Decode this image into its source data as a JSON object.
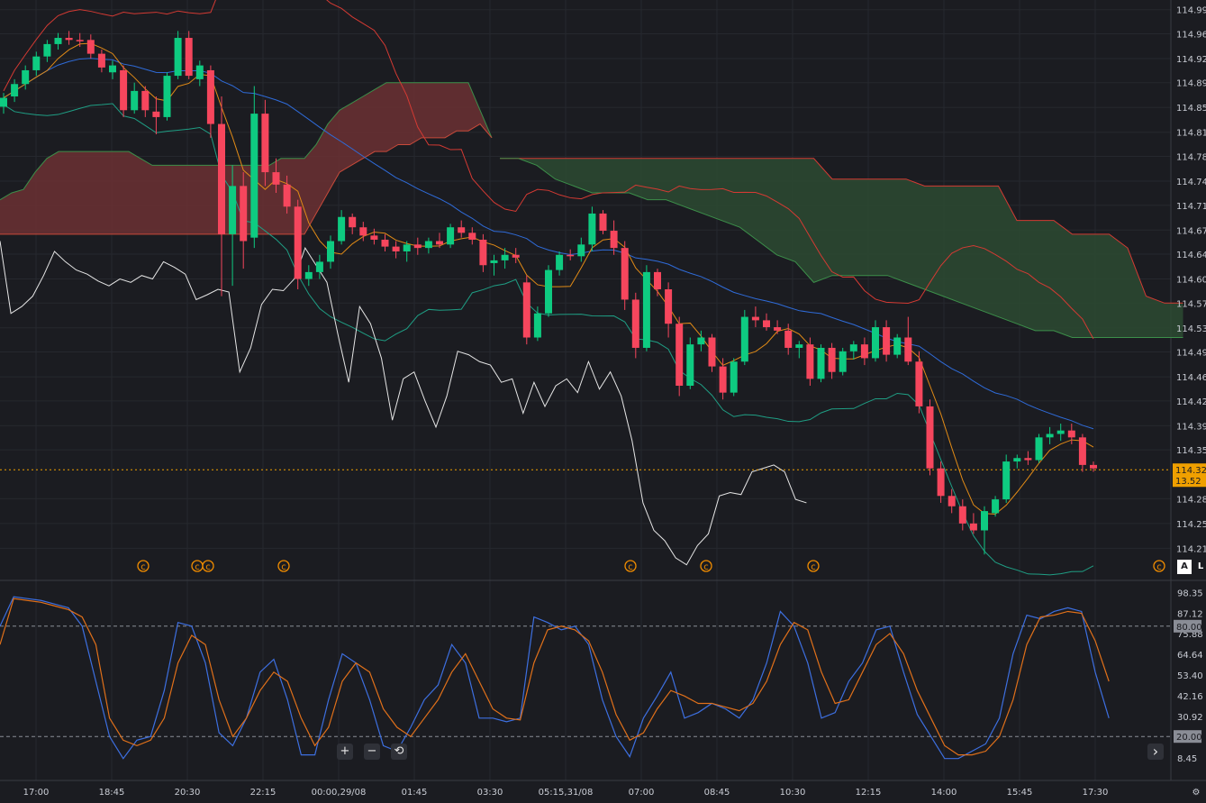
{
  "colors": {
    "background": "#1b1c21",
    "grid": "#26282e",
    "up": "#0ecb81",
    "down": "#f6465d",
    "price_line": "#f0a000",
    "signal_line": "#e06c00",
    "kline_blue": "#2f6bd8",
    "bb_red": "#d43a33",
    "bb_teal": "#1f9e84",
    "tenkan": "#e08a16",
    "chikou": "#e6e6e6",
    "cloud_red": "#6b3032",
    "cloud_green": "#2c4a31",
    "stoch_k": "#3d6fe0",
    "stoch_d": "#e0701a",
    "axis_text": "#c9ccd4"
  },
  "price_axis": {
    "ticks": [
      "114.996",
      "114.961",
      "114.925",
      "114.890",
      "114.854",
      "114.818",
      "114.783",
      "114.747",
      "114.712",
      "114.676",
      "114.641",
      "114.605",
      "114.570",
      "114.534",
      "114.499",
      "114.463",
      "114.428",
      "114.392",
      "114.357",
      "114.286",
      "114.250",
      "114.214"
    ],
    "current_price": "114.328",
    "current_extra": "13.52"
  },
  "oscillator_axis": {
    "ticks": [
      "98.35",
      "87.12",
      "75.88",
      "64.64",
      "53.40",
      "42.16",
      "30.92",
      "8.45"
    ],
    "upper_band": "80.00",
    "lower_band": "20.00"
  },
  "time_axis": {
    "ticks": [
      "17:00",
      "18:45",
      "20:30",
      "22:15",
      "00:00,29/08",
      "01:45",
      "03:30",
      "05:15,31/08",
      "07:00",
      "08:45",
      "10:30",
      "12:15",
      "14:00",
      "15:45",
      "17:30"
    ]
  },
  "event_markers": {
    "symbol": "©"
  },
  "controls": {
    "zoom_in": "+",
    "zoom_out": "−",
    "reset": "⟲",
    "scroll_right": "›",
    "auto_scale": "A",
    "log_scale": "L",
    "settings": "⚙"
  },
  "chart_data": [
    {
      "type": "candlestick",
      "title": "",
      "ylim": [
        114.17,
        115.01
      ],
      "candles": [
        {
          "o": 114.855,
          "h": 114.875,
          "l": 114.845,
          "c": 114.868
        },
        {
          "o": 114.87,
          "h": 114.895,
          "l": 114.862,
          "c": 114.888
        },
        {
          "o": 114.888,
          "h": 114.915,
          "l": 114.88,
          "c": 114.908
        },
        {
          "o": 114.908,
          "h": 114.935,
          "l": 114.9,
          "c": 114.928
        },
        {
          "o": 114.928,
          "h": 114.952,
          "l": 114.92,
          "c": 114.946
        },
        {
          "o": 114.946,
          "h": 114.962,
          "l": 114.938,
          "c": 114.955
        },
        {
          "o": 114.955,
          "h": 114.965,
          "l": 114.945,
          "c": 114.952
        },
        {
          "o": 114.952,
          "h": 114.962,
          "l": 114.942,
          "c": 114.95
        },
        {
          "o": 114.952,
          "h": 114.96,
          "l": 114.925,
          "c": 114.932
        },
        {
          "o": 114.932,
          "h": 114.938,
          "l": 114.905,
          "c": 114.912
        },
        {
          "o": 114.905,
          "h": 114.922,
          "l": 114.895,
          "c": 114.915
        },
        {
          "o": 114.908,
          "h": 114.915,
          "l": 114.84,
          "c": 114.85
        },
        {
          "o": 114.85,
          "h": 114.89,
          "l": 114.845,
          "c": 114.878
        },
        {
          "o": 114.878,
          "h": 114.885,
          "l": 114.84,
          "c": 114.85
        },
        {
          "o": 114.848,
          "h": 114.87,
          "l": 114.815,
          "c": 114.84
        },
        {
          "o": 114.84,
          "h": 114.905,
          "l": 114.835,
          "c": 114.9
        },
        {
          "o": 114.9,
          "h": 114.965,
          "l": 114.895,
          "c": 114.955
        },
        {
          "o": 114.955,
          "h": 114.965,
          "l": 114.895,
          "c": 114.9
        },
        {
          "o": 114.895,
          "h": 114.922,
          "l": 114.885,
          "c": 114.915
        },
        {
          "o": 114.908,
          "h": 114.915,
          "l": 114.81,
          "c": 114.83
        },
        {
          "o": 114.83,
          "h": 114.87,
          "l": 114.58,
          "c": 114.67
        },
        {
          "o": 114.67,
          "h": 114.77,
          "l": 114.595,
          "c": 114.74
        },
        {
          "o": 114.74,
          "h": 114.76,
          "l": 114.62,
          "c": 114.66
        },
        {
          "o": 114.665,
          "h": 114.885,
          "l": 114.65,
          "c": 114.845
        },
        {
          "o": 114.845,
          "h": 114.865,
          "l": 114.74,
          "c": 114.76
        },
        {
          "o": 114.76,
          "h": 114.78,
          "l": 114.73,
          "c": 114.742
        },
        {
          "o": 114.742,
          "h": 114.755,
          "l": 114.7,
          "c": 114.71
        },
        {
          "o": 114.71,
          "h": 114.72,
          "l": 114.59,
          "c": 114.605
        },
        {
          "o": 114.605,
          "h": 114.625,
          "l": 114.595,
          "c": 114.615
        },
        {
          "o": 114.615,
          "h": 114.64,
          "l": 114.605,
          "c": 114.63
        },
        {
          "o": 114.63,
          "h": 114.668,
          "l": 114.62,
          "c": 114.66
        },
        {
          "o": 114.66,
          "h": 114.705,
          "l": 114.655,
          "c": 114.695
        },
        {
          "o": 114.695,
          "h": 114.7,
          "l": 114.67,
          "c": 114.68
        },
        {
          "o": 114.68,
          "h": 114.688,
          "l": 114.66,
          "c": 114.668
        },
        {
          "o": 114.668,
          "h": 114.678,
          "l": 114.655,
          "c": 114.662
        },
        {
          "o": 114.662,
          "h": 114.67,
          "l": 114.645,
          "c": 114.652
        },
        {
          "o": 114.652,
          "h": 114.66,
          "l": 114.635,
          "c": 114.645
        },
        {
          "o": 114.645,
          "h": 114.66,
          "l": 114.63,
          "c": 114.655
        },
        {
          "o": 114.655,
          "h": 114.665,
          "l": 114.64,
          "c": 114.65
        },
        {
          "o": 114.65,
          "h": 114.665,
          "l": 114.642,
          "c": 114.66
        },
        {
          "o": 114.66,
          "h": 114.672,
          "l": 114.65,
          "c": 114.655
        },
        {
          "o": 114.655,
          "h": 114.685,
          "l": 114.65,
          "c": 114.68
        },
        {
          "o": 114.68,
          "h": 114.69,
          "l": 114.665,
          "c": 114.672
        },
        {
          "o": 114.672,
          "h": 114.68,
          "l": 114.655,
          "c": 114.662
        },
        {
          "o": 114.662,
          "h": 114.67,
          "l": 114.615,
          "c": 114.625
        },
        {
          "o": 114.628,
          "h": 114.64,
          "l": 114.61,
          "c": 114.632
        },
        {
          "o": 114.632,
          "h": 114.65,
          "l": 114.62,
          "c": 114.64
        },
        {
          "o": 114.64,
          "h": 114.65,
          "l": 114.628,
          "c": 114.636
        },
        {
          "o": 114.6,
          "h": 114.61,
          "l": 114.51,
          "c": 114.52
        },
        {
          "o": 114.52,
          "h": 114.565,
          "l": 114.515,
          "c": 114.555
        },
        {
          "o": 114.555,
          "h": 114.625,
          "l": 114.55,
          "c": 114.618
        },
        {
          "o": 114.618,
          "h": 114.645,
          "l": 114.61,
          "c": 114.64
        },
        {
          "o": 114.64,
          "h": 114.648,
          "l": 114.632,
          "c": 114.638
        },
        {
          "o": 114.638,
          "h": 114.665,
          "l": 114.63,
          "c": 114.655
        },
        {
          "o": 114.655,
          "h": 114.71,
          "l": 114.645,
          "c": 114.7
        },
        {
          "o": 114.7,
          "h": 114.705,
          "l": 114.67,
          "c": 114.675
        },
        {
          "o": 114.675,
          "h": 114.69,
          "l": 114.64,
          "c": 114.65
        },
        {
          "o": 114.65,
          "h": 114.66,
          "l": 114.56,
          "c": 114.575
        },
        {
          "o": 114.575,
          "h": 114.585,
          "l": 114.49,
          "c": 114.505
        },
        {
          "o": 114.505,
          "h": 114.625,
          "l": 114.5,
          "c": 114.615
        },
        {
          "o": 114.615,
          "h": 114.62,
          "l": 114.58,
          "c": 114.59
        },
        {
          "o": 114.59,
          "h": 114.6,
          "l": 114.52,
          "c": 114.54
        },
        {
          "o": 114.54,
          "h": 114.55,
          "l": 114.435,
          "c": 114.45
        },
        {
          "o": 114.45,
          "h": 114.52,
          "l": 114.445,
          "c": 114.51
        },
        {
          "o": 114.51,
          "h": 114.53,
          "l": 114.5,
          "c": 114.52
        },
        {
          "o": 114.52,
          "h": 114.525,
          "l": 114.47,
          "c": 114.478
        },
        {
          "o": 114.478,
          "h": 114.49,
          "l": 114.43,
          "c": 114.44
        },
        {
          "o": 114.44,
          "h": 114.49,
          "l": 114.435,
          "c": 114.485
        },
        {
          "o": 114.485,
          "h": 114.56,
          "l": 114.48,
          "c": 114.55
        },
        {
          "o": 114.55,
          "h": 114.565,
          "l": 114.535,
          "c": 114.545
        },
        {
          "o": 114.545,
          "h": 114.555,
          "l": 114.53,
          "c": 114.535
        },
        {
          "o": 114.535,
          "h": 114.545,
          "l": 114.525,
          "c": 114.53
        },
        {
          "o": 114.53,
          "h": 114.54,
          "l": 114.495,
          "c": 114.505
        },
        {
          "o": 114.505,
          "h": 114.515,
          "l": 114.49,
          "c": 114.51
        },
        {
          "o": 114.51,
          "h": 114.52,
          "l": 114.45,
          "c": 114.46
        },
        {
          "o": 114.46,
          "h": 114.51,
          "l": 114.455,
          "c": 114.505
        },
        {
          "o": 114.505,
          "h": 114.512,
          "l": 114.46,
          "c": 114.47
        },
        {
          "o": 114.47,
          "h": 114.505,
          "l": 114.465,
          "c": 114.5
        },
        {
          "o": 114.5,
          "h": 114.515,
          "l": 114.488,
          "c": 114.51
        },
        {
          "o": 114.51,
          "h": 114.52,
          "l": 114.48,
          "c": 114.49
        },
        {
          "o": 114.49,
          "h": 114.545,
          "l": 114.485,
          "c": 114.535
        },
        {
          "o": 114.535,
          "h": 114.545,
          "l": 114.485,
          "c": 114.495
        },
        {
          "o": 114.495,
          "h": 114.525,
          "l": 114.49,
          "c": 114.52
        },
        {
          "o": 114.52,
          "h": 114.55,
          "l": 114.48,
          "c": 114.485
        },
        {
          "o": 114.485,
          "h": 114.5,
          "l": 114.41,
          "c": 114.42
        },
        {
          "o": 114.42,
          "h": 114.43,
          "l": 114.32,
          "c": 114.33
        },
        {
          "o": 114.33,
          "h": 114.34,
          "l": 114.28,
          "c": 114.29
        },
        {
          "o": 114.29,
          "h": 114.3,
          "l": 114.265,
          "c": 114.275
        },
        {
          "o": 114.275,
          "h": 114.285,
          "l": 114.24,
          "c": 114.25
        },
        {
          "o": 114.25,
          "h": 114.265,
          "l": 114.235,
          "c": 114.24
        },
        {
          "o": 114.24,
          "h": 114.275,
          "l": 114.205,
          "c": 114.268
        },
        {
          "o": 114.265,
          "h": 114.29,
          "l": 114.26,
          "c": 114.285
        },
        {
          "o": 114.285,
          "h": 114.35,
          "l": 114.28,
          "c": 114.34
        },
        {
          "o": 114.34,
          "h": 114.35,
          "l": 114.33,
          "c": 114.345
        },
        {
          "o": 114.345,
          "h": 114.355,
          "l": 114.335,
          "c": 114.342
        },
        {
          "o": 114.342,
          "h": 114.38,
          "l": 114.338,
          "c": 114.375
        },
        {
          "o": 114.375,
          "h": 114.39,
          "l": 114.365,
          "c": 114.38
        },
        {
          "o": 114.38,
          "h": 114.395,
          "l": 114.37,
          "c": 114.385
        },
        {
          "o": 114.385,
          "h": 114.395,
          "l": 114.365,
          "c": 114.375
        },
        {
          "o": 114.375,
          "h": 114.38,
          "l": 114.325,
          "c": 114.335
        },
        {
          "o": 114.335,
          "h": 114.34,
          "l": 114.325,
          "c": 114.33
        }
      ],
      "overlays": {
        "ichimoku_cloud_red": {
          "upper": [
            114.72,
            114.73,
            114.735,
            114.76,
            114.78,
            114.79,
            114.79,
            114.79,
            114.79,
            114.79,
            114.79,
            114.79,
            114.78,
            114.77,
            114.77,
            114.77,
            114.77,
            114.77,
            114.77,
            114.77,
            114.77,
            114.77,
            114.77,
            114.77,
            114.78,
            114.78,
            114.78,
            114.8,
            114.83,
            114.85,
            114.86,
            114.87,
            114.88,
            114.89,
            114.89,
            114.89,
            114.89,
            114.89,
            114.89,
            114.89,
            114.89,
            114.85,
            114.81
          ],
          "lower": [
            114.67,
            114.67,
            114.67,
            114.67,
            114.67,
            114.67,
            114.67,
            114.67,
            114.67,
            114.67,
            114.67,
            114.67,
            114.67,
            114.67,
            114.67,
            114.67,
            114.67,
            114.67,
            114.67,
            114.67,
            114.67,
            114.67,
            114.67,
            114.67,
            114.67,
            114.67,
            114.67,
            114.7,
            114.73,
            114.76,
            114.77,
            114.78,
            114.79,
            114.79,
            114.8,
            114.8,
            114.81,
            114.81,
            114.81,
            114.82,
            114.82,
            114.83,
            114.81
          ]
        },
        "ichimoku_cloud_green": {
          "upper": [
            114.78,
            114.78,
            114.78,
            114.78,
            114.78,
            114.78,
            114.78,
            114.78,
            114.78,
            114.78,
            114.78,
            114.78,
            114.78,
            114.78,
            114.78,
            114.78,
            114.78,
            114.78,
            114.75,
            114.75,
            114.75,
            114.75,
            114.75,
            114.74,
            114.74,
            114.74,
            114.74,
            114.74,
            114.69,
            114.69,
            114.69,
            114.67,
            114.67,
            114.67,
            114.65,
            114.58,
            114.57,
            114.57
          ],
          "lower": [
            114.78,
            114.78,
            114.77,
            114.75,
            114.74,
            114.73,
            114.73,
            114.73,
            114.72,
            114.72,
            114.71,
            114.7,
            114.69,
            114.68,
            114.66,
            114.64,
            114.63,
            114.6,
            114.61,
            114.61,
            114.61,
            114.61,
            114.6,
            114.59,
            114.58,
            114.57,
            114.56,
            114.55,
            114.54,
            114.53,
            114.53,
            114.52,
            114.52,
            114.52,
            114.52,
            114.52,
            114.52,
            114.52
          ]
        }
      },
      "event_marker_count": 9
    },
    {
      "type": "line",
      "title": "",
      "ylim": [
        0,
        100
      ],
      "bands": [
        20,
        80
      ],
      "series": [
        {
          "values": [
            80,
            96,
            95,
            94,
            92,
            90,
            80,
            50,
            20,
            8,
            18,
            20,
            45,
            82,
            80,
            60,
            22,
            15,
            30,
            55,
            62,
            40,
            10,
            10,
            40,
            65,
            60,
            40,
            15,
            12,
            25,
            40,
            48,
            70,
            60,
            30,
            30,
            28,
            30,
            85,
            82,
            78,
            80,
            70,
            40,
            20,
            9,
            30,
            42,
            55,
            30,
            33,
            38,
            35,
            30,
            40,
            60,
            88,
            80,
            60,
            30,
            33,
            50,
            60,
            78,
            80,
            55,
            32,
            20,
            8,
            8,
            12,
            16,
            30,
            65,
            86,
            84,
            88,
            90,
            88,
            55,
            30
          ],
          "name": ""
        },
        {
          "values": [
            70,
            95,
            94,
            93,
            91,
            89,
            85,
            70,
            30,
            18,
            15,
            18,
            30,
            60,
            75,
            70,
            40,
            20,
            30,
            45,
            55,
            50,
            30,
            15,
            25,
            50,
            60,
            55,
            35,
            25,
            20,
            30,
            40,
            55,
            65,
            50,
            35,
            30,
            29,
            60,
            78,
            80,
            78,
            72,
            55,
            32,
            18,
            22,
            35,
            45,
            42,
            38,
            38,
            36,
            34,
            38,
            50,
            70,
            82,
            78,
            55,
            38,
            40,
            55,
            70,
            76,
            65,
            45,
            30,
            15,
            10,
            10,
            12,
            20,
            40,
            70,
            85,
            86,
            88,
            87,
            72,
            50
          ],
          "name": ""
        }
      ]
    }
  ]
}
